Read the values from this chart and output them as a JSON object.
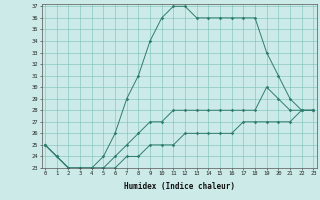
{
  "xlabel": "Humidex (Indice chaleur)",
  "hours": [
    0,
    1,
    2,
    3,
    4,
    5,
    6,
    7,
    8,
    9,
    10,
    11,
    12,
    13,
    14,
    15,
    16,
    17,
    18,
    19,
    20,
    21,
    22,
    23
  ],
  "line_max": [
    25,
    24,
    23,
    23,
    23,
    24,
    26,
    29,
    31,
    34,
    36,
    37,
    37,
    36,
    36,
    36,
    36,
    36,
    36,
    33,
    31,
    29,
    28,
    28
  ],
  "line_mean": [
    25,
    24,
    23,
    23,
    23,
    23,
    24,
    25,
    26,
    27,
    27,
    28,
    28,
    28,
    28,
    28,
    28,
    28,
    28,
    30,
    29,
    28,
    28,
    28
  ],
  "line_min": [
    25,
    24,
    23,
    23,
    23,
    23,
    23,
    24,
    24,
    25,
    25,
    25,
    26,
    26,
    26,
    26,
    26,
    27,
    27,
    27,
    27,
    27,
    28,
    28
  ],
  "color": "#2e7d6e",
  "bg_color": "#cceae7",
  "grid_color": "#7bbfba",
  "ylim_min": 23,
  "ylim_max": 37,
  "xlim_min": 0,
  "xlim_max": 23
}
